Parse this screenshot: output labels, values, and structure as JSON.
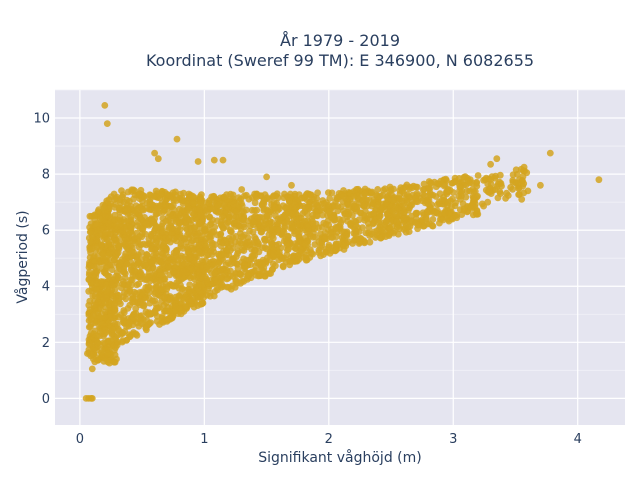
{
  "chart_data": {
    "type": "scatter",
    "title_line1": "År 1979 - 2019",
    "title_line2": "Koordinat (Sweref 99 TM): E 346900, N 6082655",
    "xlabel": "Signifikant våghöjd (m)",
    "ylabel": "Vågperiod (s)",
    "xlim": [
      -0.2,
      4.38
    ],
    "ylim": [
      -0.95,
      11.0
    ],
    "xticks": [
      0,
      1,
      2,
      3,
      4
    ],
    "yticks": [
      0,
      2,
      4,
      6,
      8,
      10
    ],
    "grid": true,
    "legend": "none",
    "marker_color": "#d4a520",
    "plot_background": "#e5e5f0",
    "series": [
      {
        "points": [
          [
            0.2,
            10.45
          ],
          [
            0.22,
            9.8
          ],
          [
            0.78,
            9.25
          ],
          [
            0.6,
            8.75
          ],
          [
            0.63,
            8.55
          ],
          [
            0.95,
            8.45
          ],
          [
            1.08,
            8.5
          ],
          [
            1.15,
            8.5
          ],
          [
            4.17,
            7.8
          ],
          [
            3.78,
            8.75
          ],
          [
            3.35,
            8.55
          ],
          [
            0.05,
            0.0
          ],
          [
            0.07,
            0.0
          ],
          [
            0.09,
            0.0
          ],
          [
            0.1,
            0.0
          ],
          [
            0.06,
            1.6
          ],
          [
            0.1,
            1.05
          ],
          [
            0.12,
            1.3
          ],
          [
            3.55,
            7.1
          ],
          [
            3.6,
            7.4
          ],
          [
            3.7,
            7.6
          ],
          [
            3.3,
            8.35
          ],
          [
            3.2,
            7.95
          ],
          [
            2.9,
            7.75
          ],
          [
            2.6,
            7.5
          ],
          [
            2.2,
            7.2
          ],
          [
            1.7,
            7.6
          ],
          [
            1.5,
            7.9
          ],
          [
            1.5,
            6.5
          ],
          [
            1.3,
            7.45
          ],
          [
            3.05,
            7.4
          ],
          [
            3.15,
            6.9
          ],
          [
            2.75,
            7.05
          ],
          [
            0.7,
            2.75
          ],
          [
            0.55,
            2.65
          ],
          [
            0.85,
            3.3
          ],
          [
            0.9,
            3.5
          ],
          [
            0.8,
            3.6
          ],
          [
            0.45,
            2.3
          ],
          [
            1.35,
            4.4
          ],
          [
            1.0,
            3.85
          ],
          [
            0.3,
            1.9
          ],
          [
            0.4,
            2.2
          ],
          [
            2.0,
            5.4
          ],
          [
            2.55,
            6.1
          ]
        ]
      }
    ],
    "density_regions": [
      {
        "x0": 0.07,
        "x1": 0.3,
        "ylo0": 1.4,
        "ylo1": 1.2,
        "yhi0": 6.5,
        "yhi1": 7.4,
        "n": 500
      },
      {
        "x0": 0.3,
        "x1": 1.0,
        "ylo0": 1.9,
        "ylo1": 3.4,
        "yhi0": 7.5,
        "yhi1": 7.3,
        "n": 1000
      },
      {
        "x0": 1.0,
        "x1": 1.8,
        "ylo0": 3.5,
        "ylo1": 4.9,
        "yhi0": 7.3,
        "yhi1": 7.3,
        "n": 650
      },
      {
        "x0": 1.8,
        "x1": 2.6,
        "ylo0": 4.9,
        "ylo1": 5.9,
        "yhi0": 7.3,
        "yhi1": 7.6,
        "n": 450
      },
      {
        "x0": 2.6,
        "x1": 3.2,
        "ylo0": 5.9,
        "ylo1": 6.5,
        "yhi0": 7.6,
        "yhi1": 8.0,
        "n": 240
      },
      {
        "x0": 3.2,
        "x1": 3.6,
        "ylo0": 6.8,
        "ylo1": 7.3,
        "yhi0": 7.8,
        "yhi1": 8.3,
        "n": 60
      }
    ]
  }
}
